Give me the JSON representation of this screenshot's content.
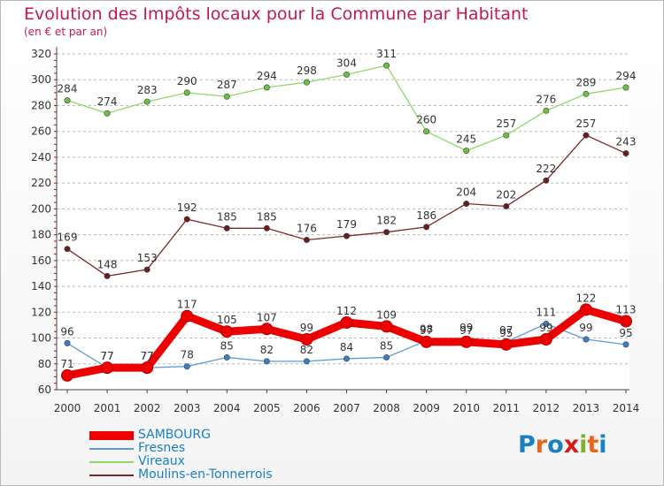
{
  "header": {
    "title": "Evolution des Impôts locaux pour la Commune par Habitant",
    "subtitle": "(en € et par an)"
  },
  "logo": {
    "text": "Proxiti",
    "colors": [
      "#1a80c4",
      "#e8651a",
      "#1a80c4",
      "#d11f1f",
      "#7bb32e",
      "#e8651a",
      "#1a80c4"
    ]
  },
  "chart_data": {
    "type": "line",
    "title": "Evolution des Impôts locaux pour la Commune par Habitant",
    "subtitle": "(en € et par an)",
    "xlabel": "",
    "ylabel": "",
    "categories": [
      "2000",
      "2001",
      "2002",
      "2003",
      "2004",
      "2005",
      "2006",
      "2007",
      "2008",
      "2009",
      "2010",
      "2011",
      "2012",
      "2013",
      "2014"
    ],
    "ylim": [
      60,
      320
    ],
    "yticks": [
      "60",
      "80",
      "100",
      "120",
      "140",
      "160",
      "180",
      "200",
      "220",
      "240",
      "260",
      "280",
      "300",
      "320"
    ],
    "grid": "horizontal dashed",
    "legend_position": "bottom-left",
    "series": [
      {
        "name": "SAMBOURG",
        "color": "#ee0000",
        "marker": "#ee0000",
        "emphasis": true,
        "values": [
          71,
          77,
          77,
          117,
          105,
          107,
          99,
          112,
          109,
          97,
          97,
          95,
          99,
          122,
          113
        ],
        "labels": [
          "71",
          "77",
          "77",
          "117",
          "105",
          "107",
          "99",
          "112",
          "109",
          "97",
          "97",
          "95",
          "99",
          "122",
          "113"
        ]
      },
      {
        "name": "Fresnes",
        "color": "#5b9bd5",
        "marker": "#3a7fc0",
        "emphasis": false,
        "values": [
          96,
          77,
          77,
          78,
          85,
          82,
          82,
          84,
          85,
          98,
          99,
          97,
          111,
          99,
          95
        ],
        "labels": [
          "96",
          "77",
          "77",
          "78",
          "85",
          "82",
          "82",
          "84",
          "85",
          "98",
          "99",
          "97",
          "111",
          "99",
          "95"
        ]
      },
      {
        "name": "Vireaux",
        "color": "#8fd86a",
        "marker": "#6cc040",
        "emphasis": false,
        "values": [
          284,
          274,
          283,
          290,
          287,
          294,
          298,
          304,
          311,
          260,
          245,
          257,
          276,
          289,
          294
        ],
        "labels": [
          "284",
          "274",
          "283",
          "290",
          "287",
          "294",
          "298",
          "304",
          "311",
          "260",
          "245",
          "257",
          "276",
          "289",
          "294"
        ]
      },
      {
        "name": "Moulins-en-Tonnerrois",
        "color": "#7a2a2a",
        "marker": "#6b1c1c",
        "emphasis": false,
        "values": [
          169,
          148,
          153,
          192,
          185,
          185,
          176,
          179,
          182,
          186,
          204,
          202,
          222,
          257,
          243
        ],
        "labels": [
          "169",
          "148",
          "153",
          "192",
          "185",
          "185",
          "176",
          "179",
          "182",
          "186",
          "204",
          "202",
          "222",
          "257",
          "243"
        ]
      }
    ]
  }
}
